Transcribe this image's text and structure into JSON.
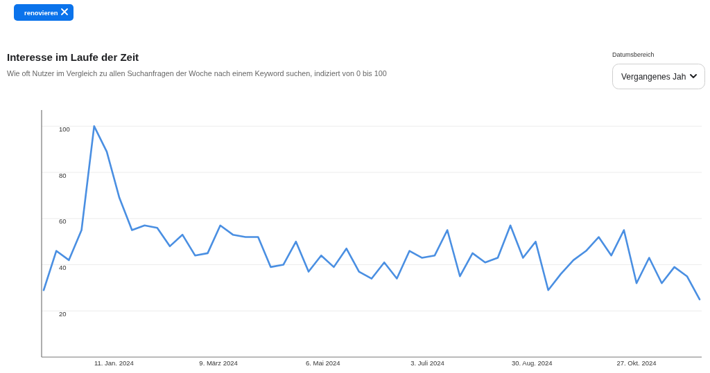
{
  "chart_data": {
    "type": "line",
    "title": "Interesse im Laufe der Zeit",
    "subtitle": "Wie oft Nutzer im Vergleich zu allen Suchanfragen der Woche nach einem Keyword suchen, indiziert von 0 bis 100",
    "annotations": [
      "renovieren",
      "Datumsbereich",
      "Vergangenes Jah"
    ],
    "x": [
      "2023-12-03",
      "2023-12-10",
      "2023-12-17",
      "2023-12-24",
      "2023-12-31",
      "2024-01-07",
      "2024-01-14",
      "2024-01-21",
      "2024-01-28",
      "2024-02-04",
      "2024-02-11",
      "2024-02-18",
      "2024-02-25",
      "2024-03-03",
      "2024-03-10",
      "2024-03-17",
      "2024-03-24",
      "2024-03-31",
      "2024-04-07",
      "2024-04-14",
      "2024-04-21",
      "2024-04-28",
      "2024-05-05",
      "2024-05-12",
      "2024-05-19",
      "2024-05-26",
      "2024-06-02",
      "2024-06-09",
      "2024-06-16",
      "2024-06-23",
      "2024-06-30",
      "2024-07-07",
      "2024-07-14",
      "2024-07-21",
      "2024-07-28",
      "2024-08-04",
      "2024-08-11",
      "2024-08-18",
      "2024-08-25",
      "2024-09-01",
      "2024-09-08",
      "2024-09-15",
      "2024-09-22",
      "2024-09-29",
      "2024-10-06",
      "2024-10-13",
      "2024-10-20",
      "2024-10-27",
      "2024-11-03",
      "2024-11-10",
      "2024-11-17",
      "2024-11-24",
      "2024-12-01"
    ],
    "series": [
      {
        "color": "#4a8fe2",
        "values": [
          29,
          46,
          42,
          55,
          100,
          89,
          69,
          55,
          57,
          56,
          48,
          53,
          44,
          45,
          57,
          53,
          52,
          52,
          39,
          40,
          50,
          37,
          44,
          39,
          47,
          37,
          34,
          41,
          34,
          46,
          43,
          44,
          55,
          35,
          45,
          41,
          43,
          57,
          43,
          50,
          29,
          36,
          42,
          46,
          52,
          44,
          55,
          32,
          43,
          32,
          39,
          35,
          25
        ]
      }
    ],
    "xlim": [
      "2023-12-03",
      "2024-12-01"
    ],
    "xticks": [
      {
        "value": "2024-01-11",
        "label": "11. Jan. 2024"
      },
      {
        "value": "2024-03-09",
        "label": "9. März 2024"
      },
      {
        "value": "2024-05-06",
        "label": "6. Mai 2024"
      },
      {
        "value": "2024-07-03",
        "label": "3. Juli 2024"
      },
      {
        "value": "2024-08-30",
        "label": "30. Aug. 2024"
      },
      {
        "value": "2024-10-27",
        "label": "27. Okt. 2024"
      }
    ],
    "ylim": [
      0,
      107
    ],
    "yticks": [
      20,
      40,
      60,
      80,
      100
    ],
    "grid": "y",
    "line_style": "solid"
  }
}
